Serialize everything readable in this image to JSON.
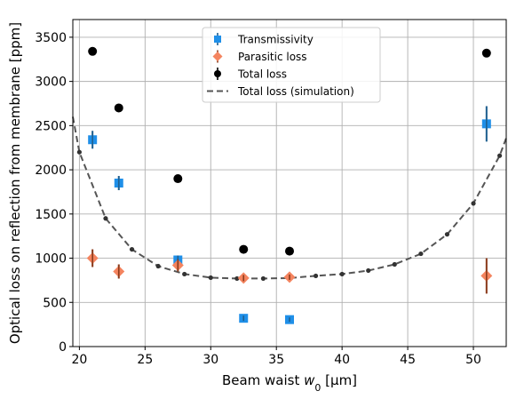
{
  "chart_data": {
    "type": "scatter",
    "xlabel_prefix": "Beam waist ",
    "xlabel_var": "w",
    "xlabel_sub": "0",
    "xlabel_suffix": " [μm]",
    "ylabel": "Optical loss on reflection from membrane [ppm]",
    "xlim": [
      19.5,
      52.5
    ],
    "ylim": [
      0,
      3700
    ],
    "xticks": [
      20,
      25,
      30,
      35,
      40,
      45,
      50
    ],
    "yticks": [
      0,
      500,
      1000,
      1500,
      2000,
      2500,
      3000,
      3500
    ],
    "grid": true,
    "legend_position": "top-center",
    "series": [
      {
        "name": "Transmissivity",
        "marker": "square",
        "color": "#1f8fe8",
        "errcolor": "#1f5f8f",
        "x": [
          21,
          23,
          27.5,
          32.5,
          36,
          51
        ],
        "y": [
          2340,
          1850,
          980,
          320,
          305,
          2520
        ],
        "yerr": [
          100,
          80,
          50,
          30,
          25,
          200
        ]
      },
      {
        "name": "Parasitic loss",
        "marker": "diamond",
        "color": "#f4845f",
        "errcolor": "#8b3a1a",
        "x": [
          21,
          23,
          27.5,
          32.5,
          36,
          51
        ],
        "y": [
          1000,
          850,
          920,
          775,
          785,
          800
        ],
        "yerr": [
          100,
          80,
          70,
          35,
          30,
          200
        ]
      },
      {
        "name": "Total loss",
        "marker": "circle",
        "color": "#000000",
        "errcolor": "#000000",
        "x": [
          21,
          23,
          27.5,
          32.5,
          36,
          51
        ],
        "y": [
          3340,
          2700,
          1900,
          1100,
          1080,
          3320
        ],
        "yerr": [
          0,
          0,
          0,
          0,
          0,
          0
        ]
      },
      {
        "name": "Total loss (simulation)",
        "marker": "line-dashed",
        "color": "#555555",
        "x": [
          19.5,
          20,
          22,
          24,
          26,
          28,
          30,
          32,
          34,
          36,
          38,
          40,
          42,
          44,
          46,
          48,
          50,
          52,
          52.5
        ],
        "y": [
          2600,
          2200,
          1450,
          1100,
          910,
          820,
          780,
          770,
          770,
          775,
          800,
          820,
          860,
          930,
          1050,
          1270,
          1620,
          2160,
          2360
        ]
      }
    ]
  }
}
